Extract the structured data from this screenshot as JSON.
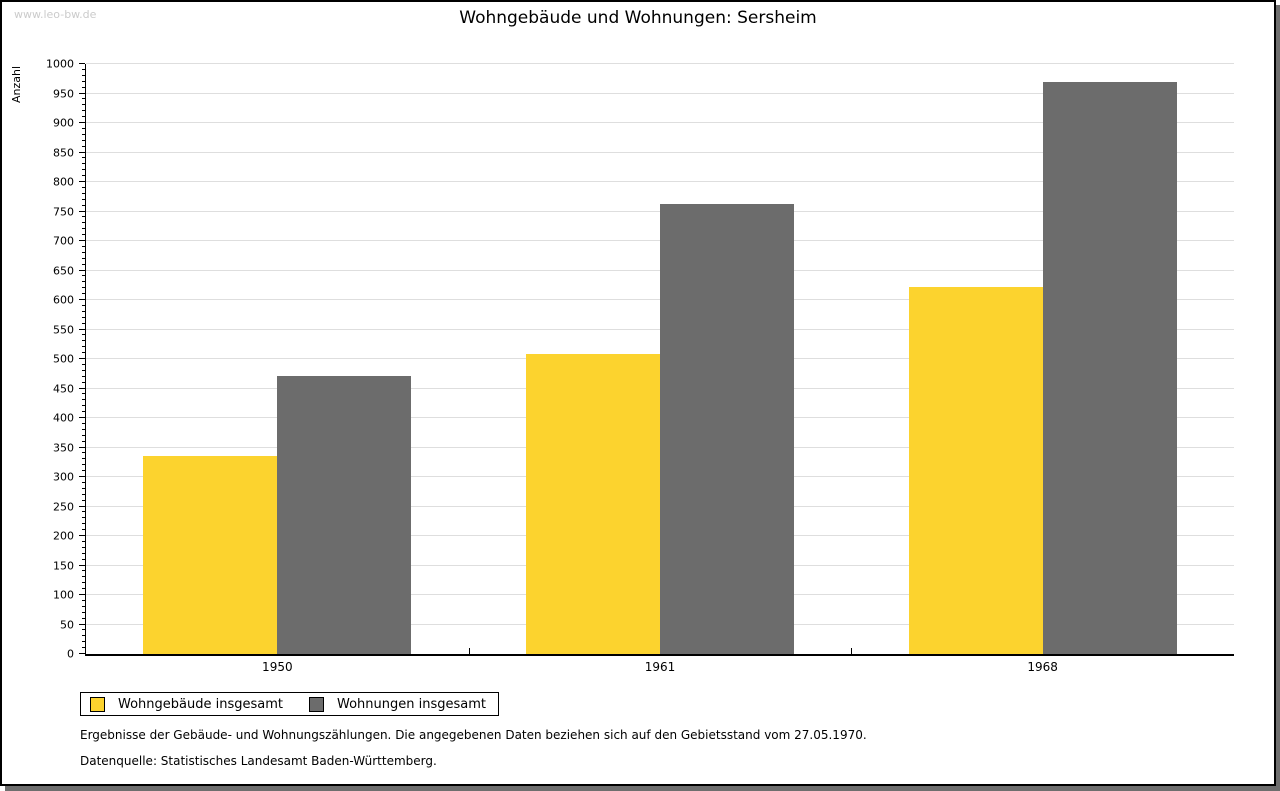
{
  "watermark": "www.leo-bw.de",
  "title": "Wohngebäude und Wohnungen: Sersheim",
  "chart_data": {
    "type": "bar",
    "title": "Wohngebäude und Wohnungen: Sersheim",
    "categories": [
      "1950",
      "1961",
      "1968"
    ],
    "series": [
      {
        "name": "Wohngebäude insgesamt",
        "color": "#fcd32e",
        "values": [
          335,
          508,
          622
        ]
      },
      {
        "name": "Wohnungen insgesamt",
        "color": "#6c6c6c",
        "values": [
          472,
          762,
          970
        ]
      }
    ],
    "xlabel": "",
    "ylabel": "Anzahl",
    "ylim": [
      0,
      1000
    ],
    "ytick_major_step": 50,
    "ytick_minor_step": 10,
    "grid": "on",
    "gridline_color": "#dedede",
    "legend_position": "bottom-left"
  },
  "footer": {
    "line1": "Ergebnisse der Gebäude- und Wohnungszählungen. Die angegebenen Daten beziehen sich auf den Gebietsstand vom 27.05.1970.",
    "line2": "Datenquelle: Statistisches Landesamt Baden-Württemberg."
  }
}
